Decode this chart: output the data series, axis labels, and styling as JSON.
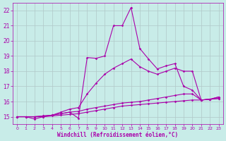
{
  "xlabel": "Windchill (Refroidissement éolien,°C)",
  "xlim": [
    -0.5,
    23.5
  ],
  "ylim": [
    14.5,
    22.5
  ],
  "yticks": [
    15,
    16,
    17,
    18,
    19,
    20,
    21,
    22
  ],
  "xticks": [
    0,
    1,
    2,
    3,
    4,
    5,
    6,
    7,
    8,
    9,
    10,
    11,
    12,
    13,
    14,
    15,
    16,
    17,
    18,
    19,
    20,
    21,
    22,
    23
  ],
  "bg_color": "#c8ece8",
  "grid_color": "#b0c8c8",
  "line_color": "#aa00aa",
  "lines": [
    {
      "x": [
        0,
        1,
        2,
        3,
        4,
        5,
        6,
        7,
        8,
        9,
        10,
        11,
        12,
        13,
        14,
        15,
        16,
        17,
        18,
        19,
        20,
        21,
        22,
        23
      ],
      "y": [
        15.0,
        15.0,
        14.85,
        15.0,
        15.05,
        15.1,
        15.15,
        15.2,
        15.3,
        15.4,
        15.5,
        15.6,
        15.7,
        15.75,
        15.8,
        15.85,
        15.9,
        15.95,
        16.0,
        16.05,
        16.1,
        16.1,
        16.15,
        16.2
      ]
    },
    {
      "x": [
        0,
        1,
        2,
        3,
        4,
        5,
        6,
        7,
        8,
        9,
        10,
        11,
        12,
        13,
        14,
        15,
        16,
        17,
        18,
        19,
        20,
        21,
        22,
        23
      ],
      "y": [
        15.0,
        15.0,
        15.0,
        15.0,
        15.1,
        15.2,
        15.3,
        15.35,
        15.5,
        15.6,
        15.7,
        15.8,
        15.9,
        15.95,
        16.0,
        16.1,
        16.2,
        16.3,
        16.4,
        16.5,
        16.5,
        16.1,
        16.15,
        16.2
      ]
    },
    {
      "x": [
        0,
        1,
        2,
        3,
        4,
        5,
        6,
        7,
        8,
        9,
        10,
        11,
        12,
        13,
        14,
        15,
        16,
        17,
        18,
        19,
        20,
        21,
        22,
        23
      ],
      "y": [
        15.0,
        15.0,
        15.0,
        15.05,
        15.1,
        15.3,
        15.5,
        15.6,
        16.5,
        17.2,
        17.8,
        18.2,
        18.5,
        18.8,
        18.3,
        18.0,
        17.8,
        18.0,
        18.2,
        18.0,
        18.0,
        16.1,
        16.15,
        16.3
      ]
    },
    {
      "x": [
        0,
        1,
        2,
        3,
        4,
        5,
        6,
        7,
        8,
        9,
        10,
        11,
        12,
        13,
        14,
        15,
        16,
        17,
        18,
        19,
        20,
        21,
        22,
        23
      ],
      "y": [
        15.0,
        15.0,
        15.0,
        15.05,
        15.1,
        15.2,
        15.3,
        14.9,
        18.9,
        18.85,
        19.0,
        21.0,
        21.0,
        22.2,
        19.5,
        18.8,
        18.15,
        18.35,
        18.5,
        17.0,
        16.75,
        16.1,
        16.15,
        16.3
      ]
    }
  ]
}
